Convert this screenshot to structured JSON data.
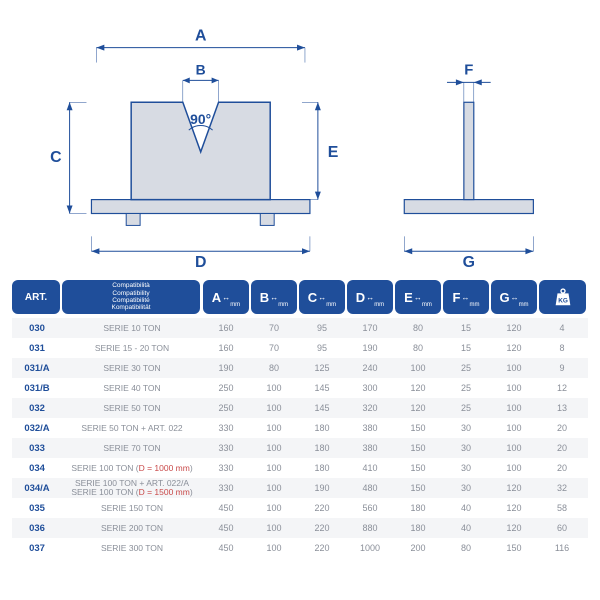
{
  "colors": {
    "brand": "#1f4e9a",
    "diagram_fill": "#d7dbe3",
    "diagram_stroke": "#1f4e9a",
    "text_grey": "#8a8f99",
    "row_alt": "#f4f5f7",
    "red": "#c94a4a"
  },
  "diagram": {
    "angle_label": "90°",
    "labels": [
      "A",
      "B",
      "C",
      "D",
      "E",
      "F",
      "G"
    ]
  },
  "header": {
    "art": "ART.",
    "compat_lines": [
      "Compatibilità",
      "Compatibility",
      "Compatibilité",
      "Kompatibilität"
    ],
    "dims": [
      "A",
      "B",
      "C",
      "D",
      "E",
      "F",
      "G"
    ],
    "dim_unit": "mm",
    "kg_label": "KG"
  },
  "rows": [
    {
      "art": "030",
      "compat_html": "SERIE 10 TON",
      "v": [
        "160",
        "70",
        "95",
        "170",
        "80",
        "15",
        "120",
        "4"
      ]
    },
    {
      "art": "031",
      "compat_html": "SERIE 15 - 20 TON",
      "v": [
        "160",
        "70",
        "95",
        "190",
        "80",
        "15",
        "120",
        "8"
      ]
    },
    {
      "art": "031/A",
      "compat_html": "SERIE 30 TON",
      "v": [
        "190",
        "80",
        "125",
        "240",
        "100",
        "25",
        "100",
        "9"
      ]
    },
    {
      "art": "031/B",
      "compat_html": "SERIE 40 TON",
      "v": [
        "250",
        "100",
        "145",
        "300",
        "120",
        "25",
        "100",
        "12"
      ]
    },
    {
      "art": "032",
      "compat_html": "SERIE 50 TON",
      "v": [
        "250",
        "100",
        "145",
        "320",
        "120",
        "25",
        "100",
        "13"
      ]
    },
    {
      "art": "032/A",
      "compat_html": "SERIE 50 TON + ART. 022",
      "v": [
        "330",
        "100",
        "180",
        "380",
        "150",
        "30",
        "100",
        "20"
      ]
    },
    {
      "art": "033",
      "compat_html": "SERIE 70 TON",
      "v": [
        "330",
        "100",
        "180",
        "380",
        "150",
        "30",
        "100",
        "20"
      ]
    },
    {
      "art": "034",
      "compat_html": "SERIE 100 TON (<span class='red'>D = 1000 mm</span>)",
      "v": [
        "330",
        "100",
        "180",
        "410",
        "150",
        "30",
        "100",
        "20"
      ]
    },
    {
      "art": "034/A",
      "compat_html": "SERIE 100 TON + ART. 022/A<br>SERIE 100 TON (<span class='red'>D = 1500 mm</span>)",
      "v": [
        "330",
        "100",
        "190",
        "480",
        "150",
        "30",
        "120",
        "32"
      ]
    },
    {
      "art": "035",
      "compat_html": "SERIE 150 TON",
      "v": [
        "450",
        "100",
        "220",
        "560",
        "180",
        "40",
        "120",
        "58"
      ]
    },
    {
      "art": "036",
      "compat_html": "SERIE 200 TON",
      "v": [
        "450",
        "100",
        "220",
        "880",
        "180",
        "40",
        "120",
        "60"
      ]
    },
    {
      "art": "037",
      "compat_html": "SERIE 300 TON",
      "v": [
        "450",
        "100",
        "220",
        "1000",
        "200",
        "80",
        "150",
        "116"
      ]
    }
  ]
}
